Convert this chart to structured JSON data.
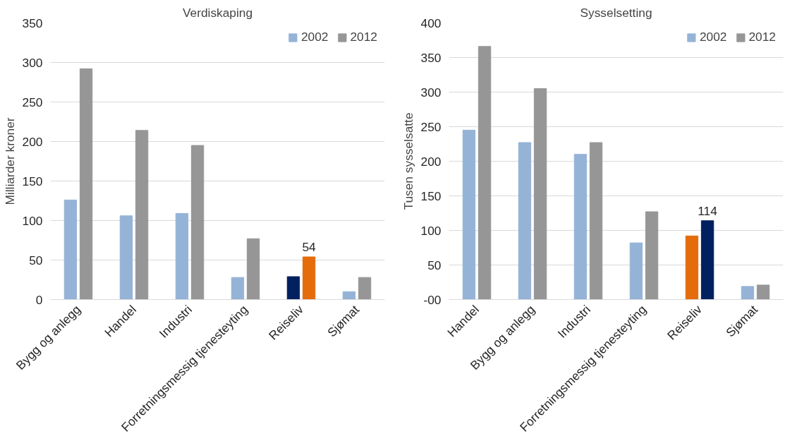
{
  "chart_data": [
    {
      "type": "bar",
      "title": "Verdiskaping",
      "ylabel": "Milliarder kroner",
      "categories": [
        "Bygg og anlegg",
        "Handel",
        "Industri",
        "Forretningsmessig tjenesteyting",
        "Reiseliv",
        "Sjømat"
      ],
      "series": [
        {
          "name": "2002",
          "color": "#95b3d7",
          "colors": [
            "#95b3d7",
            "#95b3d7",
            "#95b3d7",
            "#95b3d7",
            "#002060",
            "#95b3d7"
          ],
          "values": [
            126,
            106,
            109,
            28,
            29,
            10
          ]
        },
        {
          "name": "2012",
          "color": "#969696",
          "colors": [
            "#969696",
            "#969696",
            "#969696",
            "#969696",
            "#e46c0a",
            "#969696"
          ],
          "values": [
            292,
            214,
            195,
            77,
            54,
            28
          ],
          "value_labels": [
            null,
            null,
            null,
            null,
            "54",
            null
          ]
        }
      ],
      "ylim": [
        0,
        350
      ],
      "yticks": [
        0,
        50,
        100,
        150,
        200,
        250,
        300,
        350
      ],
      "grid": "y",
      "legend": "top right"
    },
    {
      "type": "bar",
      "title": "Sysselsetting",
      "ylabel": "Tusen sysselsatte",
      "categories": [
        "Handel",
        "Bygg og anlegg",
        "Industri",
        "Forretningsmessig tjenesteyting",
        "Reiseliv",
        "Sjømat"
      ],
      "series": [
        {
          "name": "2002",
          "color": "#95b3d7",
          "colors": [
            "#95b3d7",
            "#95b3d7",
            "#95b3d7",
            "#95b3d7",
            "#e46c0a",
            "#95b3d7"
          ],
          "values": [
            245,
            227,
            210,
            82,
            92,
            19
          ]
        },
        {
          "name": "2012",
          "color": "#969696",
          "colors": [
            "#969696",
            "#969696",
            "#969696",
            "#969696",
            "#002060",
            "#969696"
          ],
          "values": [
            366,
            305,
            227,
            127,
            114,
            21
          ],
          "value_labels": [
            null,
            null,
            null,
            null,
            "114",
            null
          ]
        }
      ],
      "ylim": [
        0,
        400
      ],
      "yticks": [
        {
          "value": 0,
          "label": "-00"
        },
        50,
        100,
        150,
        200,
        250,
        300,
        350,
        400
      ],
      "grid": "y",
      "legend": "top right"
    }
  ]
}
